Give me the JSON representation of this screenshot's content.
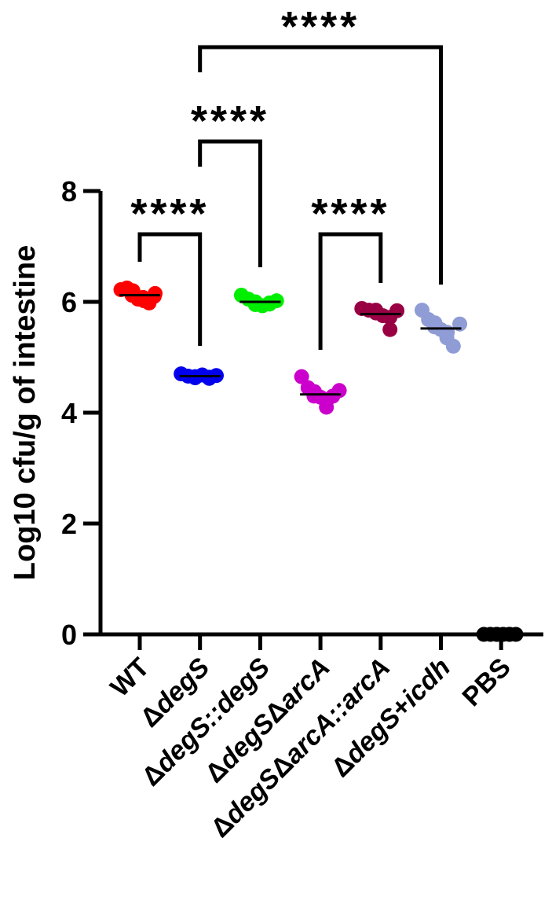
{
  "chart_data": {
    "type": "scatter",
    "ylabel": "Log10 cfu/g of intestine",
    "xlabel": "",
    "ylim": [
      0,
      8
    ],
    "yticks": [
      "0",
      "2",
      "4",
      "6",
      "8"
    ],
    "categories": [
      {
        "id": "wt",
        "parts": [
          {
            "t": "WT",
            "i": false
          }
        ]
      },
      {
        "id": "degs",
        "parts": [
          {
            "t": "Δ",
            "i": false
          },
          {
            "t": "degS",
            "i": true
          }
        ]
      },
      {
        "id": "degs-degs",
        "parts": [
          {
            "t": "Δ",
            "i": false
          },
          {
            "t": "degS::degS",
            "i": true
          }
        ]
      },
      {
        "id": "degs-arca",
        "parts": [
          {
            "t": "Δ",
            "i": false
          },
          {
            "t": "degS",
            "i": true
          },
          {
            "t": "Δ",
            "i": false
          },
          {
            "t": "arcA",
            "i": true
          }
        ]
      },
      {
        "id": "degs-arca-arca",
        "parts": [
          {
            "t": "Δ",
            "i": false
          },
          {
            "t": "degS",
            "i": true
          },
          {
            "t": "Δ",
            "i": false
          },
          {
            "t": "arcA::arcA",
            "i": true
          }
        ]
      },
      {
        "id": "degs-icdh",
        "parts": [
          {
            "t": "Δ",
            "i": false
          },
          {
            "t": "degS",
            "i": true
          },
          {
            "t": "+",
            "i": false
          },
          {
            "t": "icdh",
            "i": true
          }
        ]
      },
      {
        "id": "pbs",
        "parts": [
          {
            "t": "PBS",
            "i": false
          }
        ]
      }
    ],
    "series": [
      {
        "color": "#ff0000",
        "mean": 6.12,
        "points": [
          6.22,
          6.25,
          6.2,
          6.12,
          6.05,
          6.02,
          6.08,
          5.98,
          6.15,
          6.1
        ]
      },
      {
        "color": "#0000ee",
        "mean": 4.66,
        "points": [
          4.7,
          4.66,
          4.63,
          4.65,
          4.68,
          4.62,
          4.64,
          4.67
        ]
      },
      {
        "color": "#00ee00",
        "mean": 6.0,
        "points": [
          6.12,
          6.05,
          5.95,
          6.0,
          5.93,
          5.98,
          5.96,
          6.02
        ]
      },
      {
        "color": "#cc00cc",
        "mean": 4.33,
        "points": [
          4.65,
          4.45,
          4.38,
          4.3,
          4.28,
          4.22,
          4.1,
          4.3,
          4.4
        ]
      },
      {
        "color": "#990044",
        "mean": 5.78,
        "points": [
          5.88,
          5.85,
          5.85,
          5.8,
          5.75,
          5.72,
          5.5,
          5.84
        ]
      },
      {
        "color": "#8f9cd6",
        "mean": 5.52,
        "points": [
          5.85,
          5.68,
          5.62,
          5.55,
          5.5,
          5.45,
          5.35,
          5.2,
          5.6
        ]
      },
      {
        "color": "#000000",
        "mean": 0.0,
        "points": [
          0,
          0,
          0,
          0,
          0,
          0,
          0,
          0
        ]
      }
    ],
    "comparisons": [
      {
        "a": 0,
        "b": 1,
        "label": "****"
      },
      {
        "a": 1,
        "b": 2,
        "label": "****"
      },
      {
        "a": 3,
        "b": 4,
        "label": "****"
      },
      {
        "a": 1,
        "b": 5,
        "label": "****"
      }
    ]
  }
}
